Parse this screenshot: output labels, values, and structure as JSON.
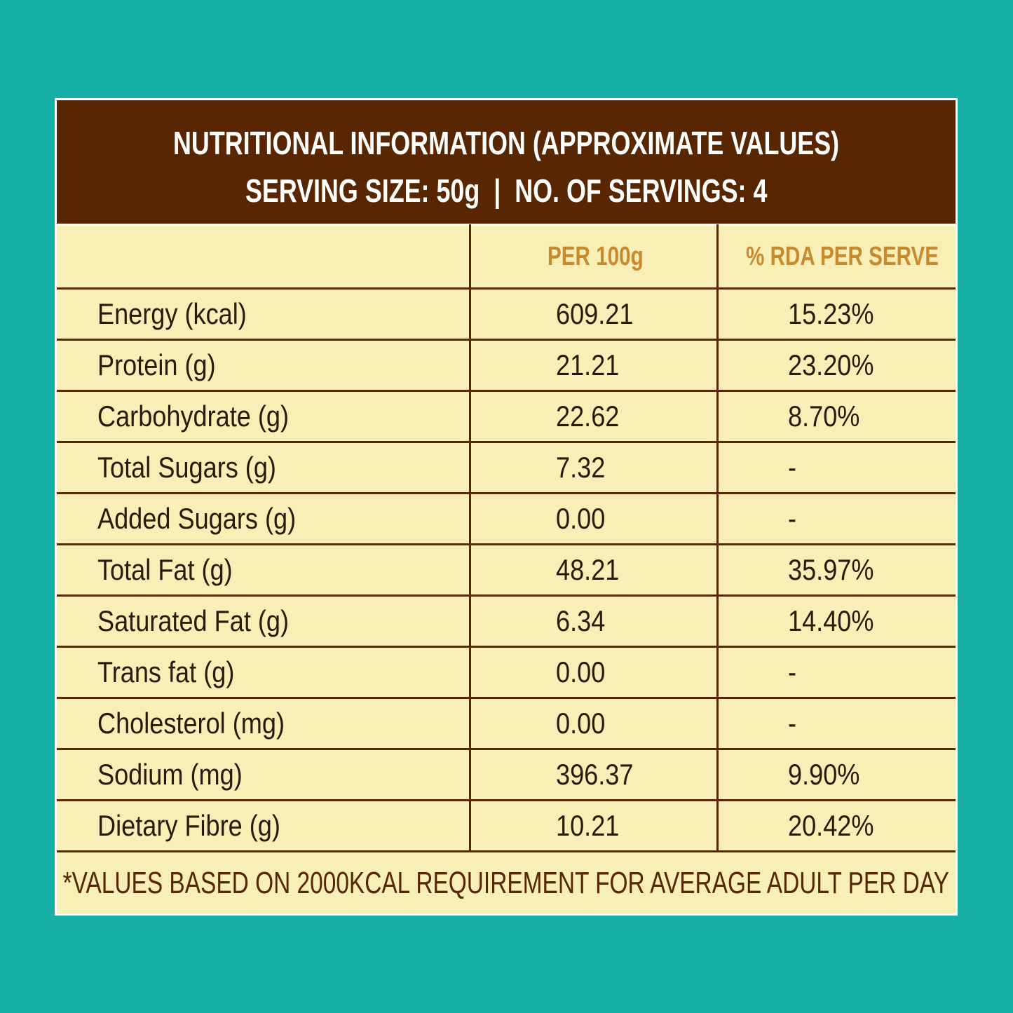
{
  "colors": {
    "background": "#17aea6",
    "header": "#582600",
    "table": "#f7efb5",
    "column_header": "#c98a2e"
  },
  "header": {
    "title": "NUTRITIONAL INFORMATION (APPROXIMATE VALUES)",
    "subtitle": "SERVING SIZE: 50g  |  NO. OF SERVINGS: 4"
  },
  "columns": [
    "",
    "PER 100g",
    "% RDA PER SERVE"
  ],
  "rows": [
    [
      "Energy (kcal)",
      "609.21",
      "15.23%"
    ],
    [
      "Protein (g)",
      "21.21",
      "23.20%"
    ],
    [
      "Carbohydrate (g)",
      "22.62",
      "8.70%"
    ],
    [
      "Total Sugars (g)",
      "7.32",
      "-"
    ],
    [
      "Added Sugars (g)",
      "0.00",
      "-"
    ],
    [
      "Total Fat (g)",
      "48.21",
      "35.97%"
    ],
    [
      "Saturated Fat (g)",
      "6.34",
      "14.40%"
    ],
    [
      "Trans fat (g)",
      "0.00",
      "-"
    ],
    [
      "Cholesterol (mg)",
      "0.00",
      "-"
    ],
    [
      "Sodium (mg)",
      "396.37",
      "9.90%"
    ],
    [
      "Dietary Fibre (g)",
      "10.21",
      "20.42%"
    ]
  ],
  "footnote": "*VALUES BASED ON 2000KCAL REQUIREMENT FOR AVERAGE ADULT PER DAY"
}
